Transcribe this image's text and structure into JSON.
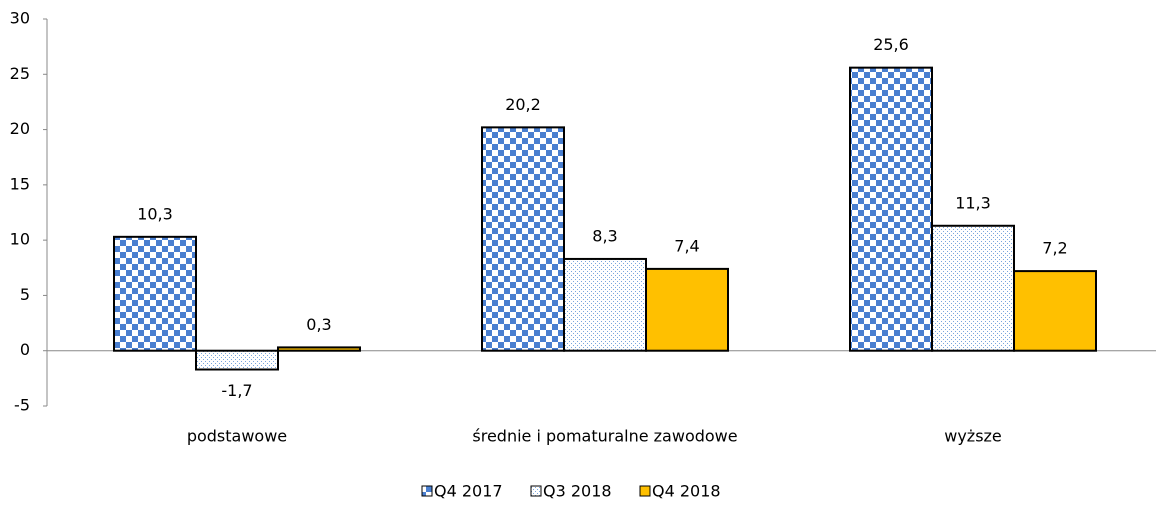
{
  "chart_data": {
    "type": "bar",
    "categories": [
      "podstawowe",
      "średnie i pomaturalne zawodowe",
      "wyższe"
    ],
    "series": [
      {
        "name": "Q4 2017",
        "color": "#4a7fd0",
        "values": [
          10.3,
          20.2,
          25.6
        ],
        "value_labels": [
          "10,3",
          "20,2",
          "25,6"
        ]
      },
      {
        "name": "Q3 2018",
        "color": "#7aa6dd",
        "values": [
          -1.7,
          8.3,
          11.3
        ],
        "value_labels": [
          "-1,7",
          "8,3",
          "11,3"
        ]
      },
      {
        "name": "Q4 2018",
        "color": "#ffc000",
        "values": [
          0.3,
          7.4,
          7.2
        ],
        "value_labels": [
          "0,3",
          "7,4",
          "7,2"
        ]
      }
    ],
    "ylim": [
      -5,
      30
    ],
    "yticks": [
      -5,
      0,
      5,
      10,
      15,
      20,
      25,
      30
    ]
  }
}
